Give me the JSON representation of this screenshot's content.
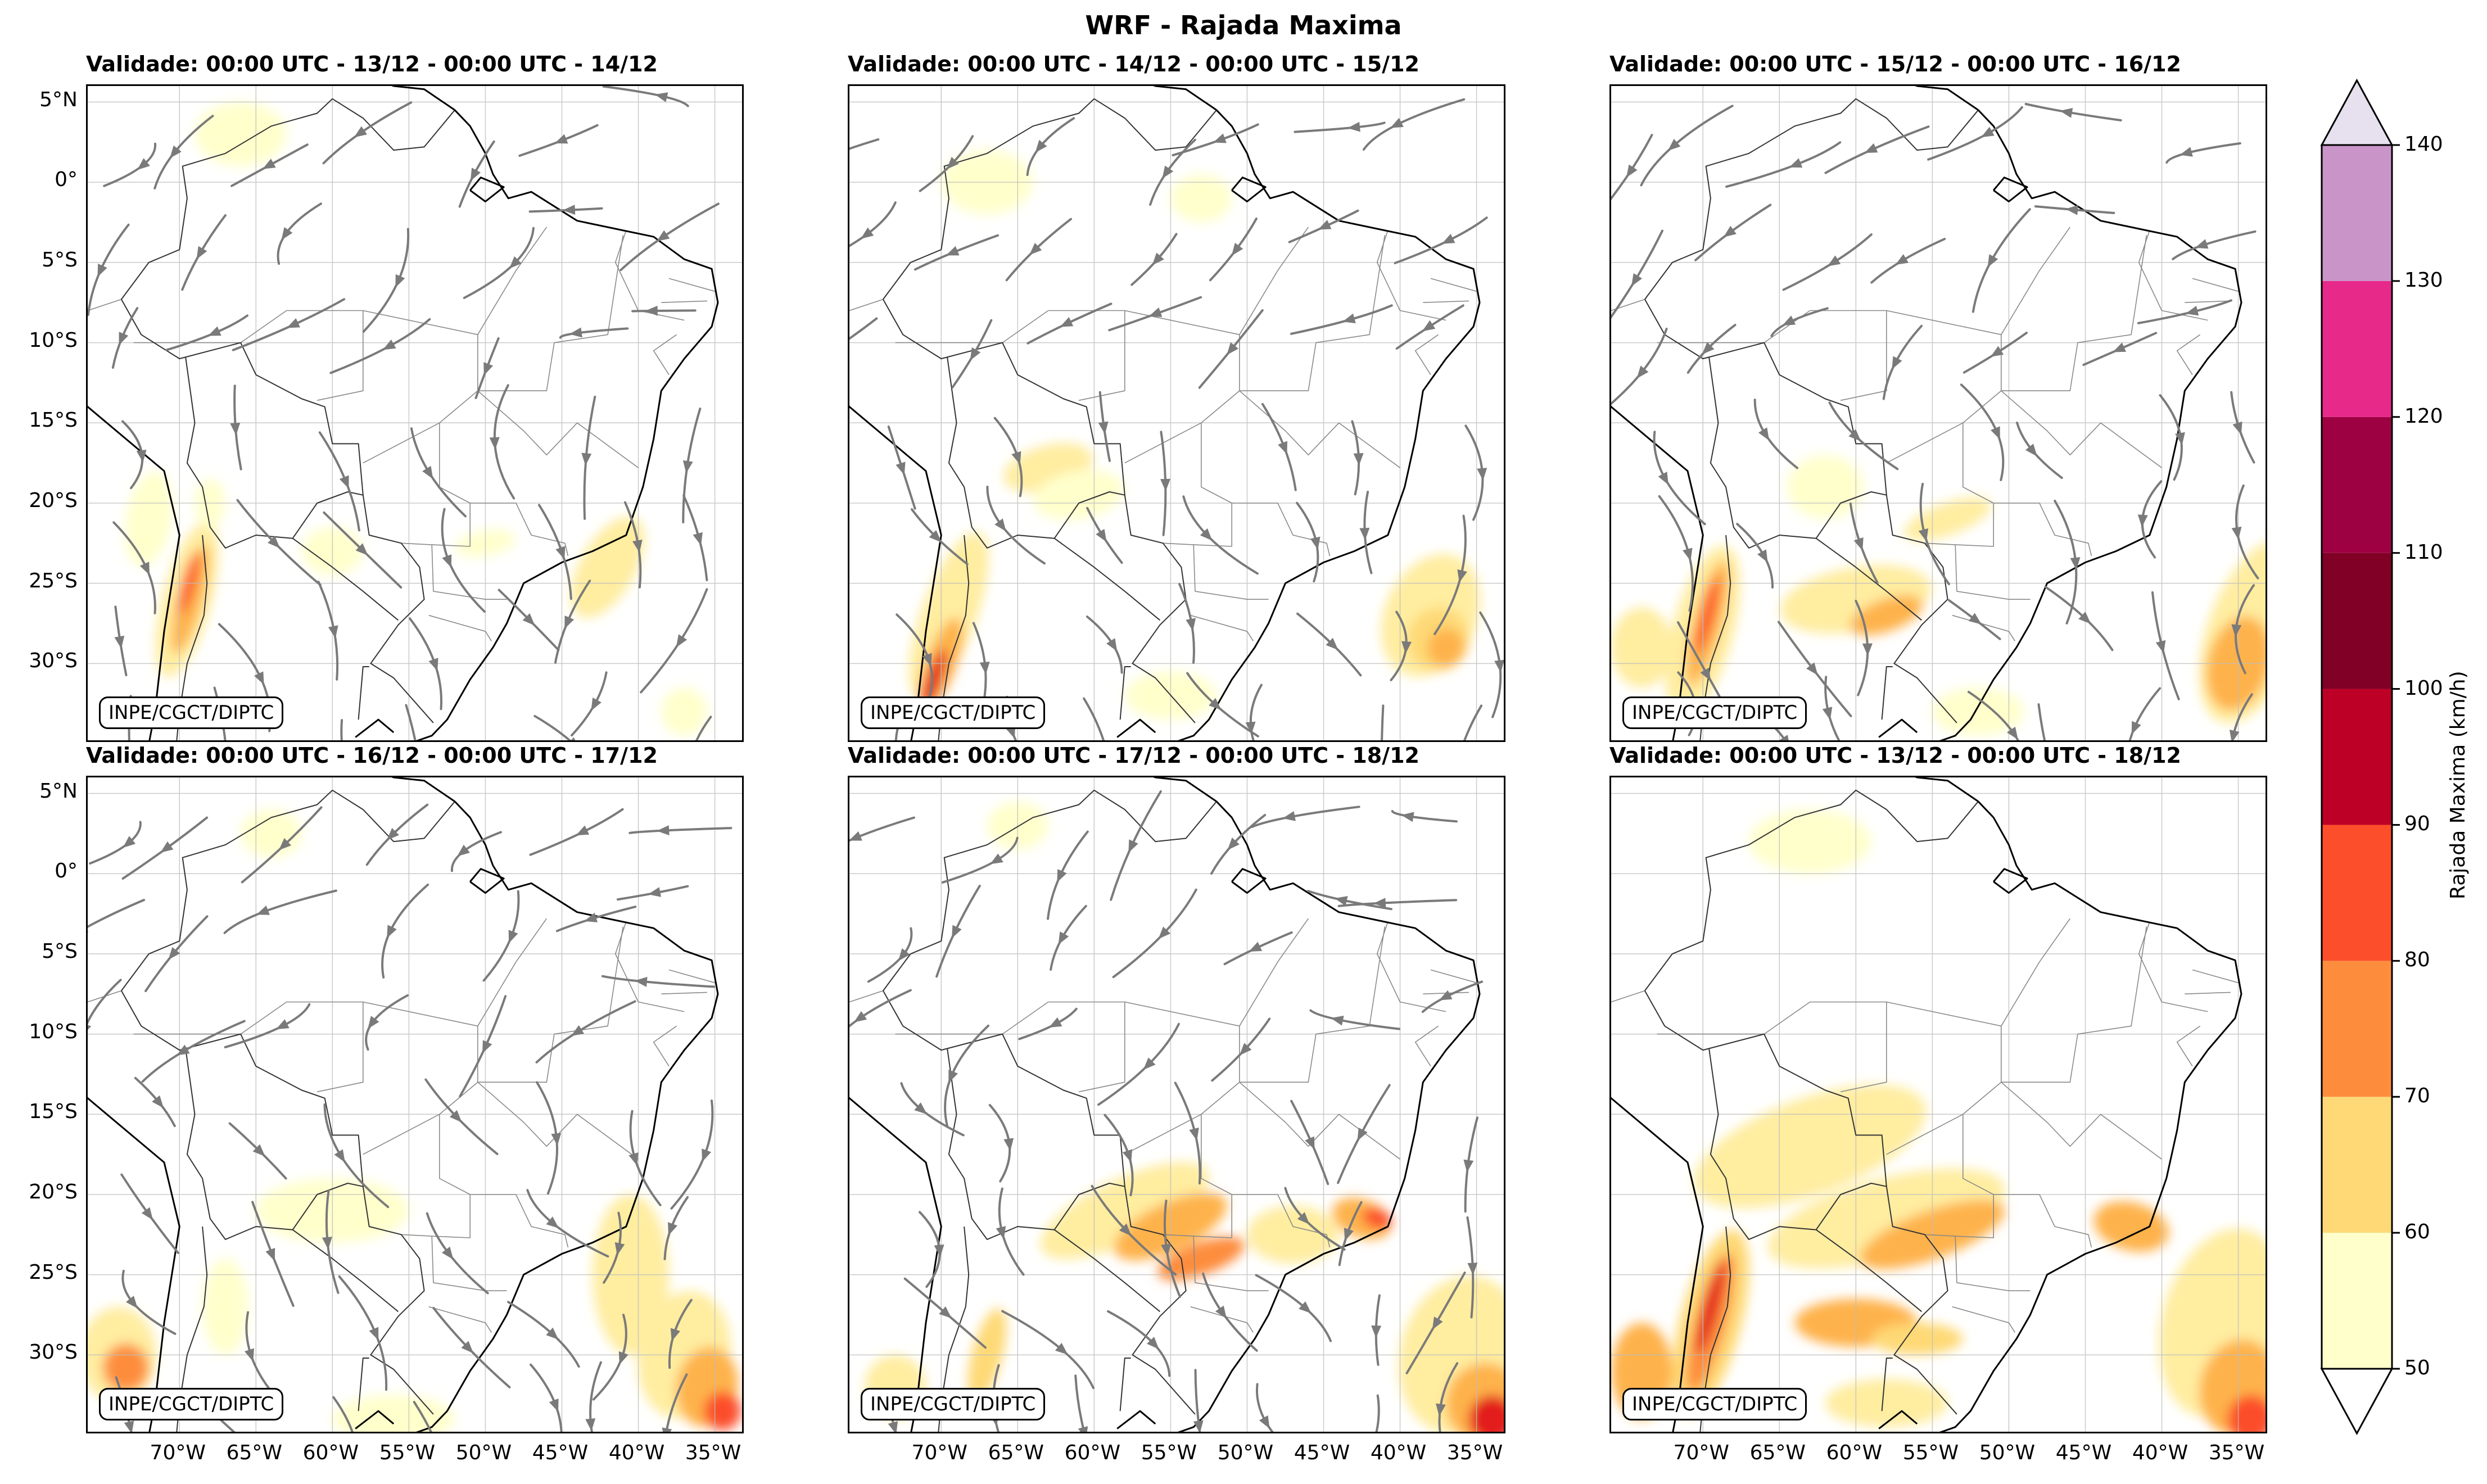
{
  "title": "WRF - Rajada Maxima",
  "panels": [
    {
      "title": "Validade: 00:00 UTC - 13/12 - 00:00 UTC - 14/12",
      "credit": "INPE/CGCT/DIPTC",
      "streamlines": true
    },
    {
      "title": "Validade: 00:00 UTC - 14/12 - 00:00 UTC - 15/12",
      "credit": "INPE/CGCT/DIPTC",
      "streamlines": true
    },
    {
      "title": "Validade: 00:00 UTC - 15/12 - 00:00 UTC - 16/12",
      "credit": "INPE/CGCT/DIPTC",
      "streamlines": true
    },
    {
      "title": "Validade: 00:00 UTC - 16/12 - 00:00 UTC - 17/12",
      "credit": "INPE/CGCT/DIPTC",
      "streamlines": true
    },
    {
      "title": "Validade: 00:00 UTC - 17/12 - 00:00 UTC - 18/12",
      "credit": "INPE/CGCT/DIPTC",
      "streamlines": true
    },
    {
      "title": "Validade: 00:00 UTC - 13/12 - 00:00 UTC - 18/12",
      "credit": "INPE/CGCT/DIPTC",
      "streamlines": false
    }
  ],
  "lat_ticks": [
    "5°N",
    "0°",
    "5°S",
    "10°S",
    "15°S",
    "20°S",
    "25°S",
    "30°S"
  ],
  "lon_ticks": [
    "70°W",
    "65°W",
    "60°W",
    "55°W",
    "50°W",
    "45°W",
    "40°W",
    "35°W"
  ],
  "colorbar": {
    "label": "Rajada Maxima (km/h)",
    "ticks": [
      "50",
      "60",
      "70",
      "80",
      "90",
      "100",
      "110",
      "120",
      "130",
      "140"
    ],
    "colors": [
      "#ffffcc",
      "#ffeda0",
      "#fed976",
      "#feb24c",
      "#fd8d3c",
      "#fc4e2a",
      "#e31a1c",
      "#bd0026",
      "#800026",
      "#9e0142",
      "#e7298a",
      "#c994c7",
      "#e7e1ef"
    ]
  }
}
